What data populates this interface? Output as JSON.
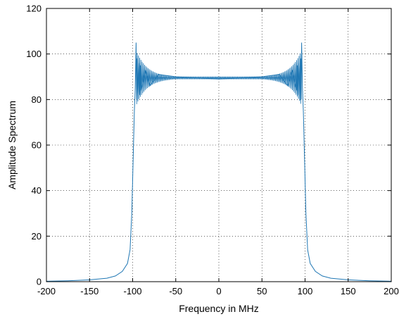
{
  "chart_data": {
    "type": "line",
    "title": "",
    "xlabel": "Frequency in MHz",
    "ylabel": "Amplitude Spectrum",
    "xlim": [
      -200,
      200
    ],
    "ylim": [
      0,
      120
    ],
    "xticks": [
      -200,
      -150,
      -100,
      -50,
      0,
      50,
      100,
      150,
      200
    ],
    "yticks": [
      0,
      20,
      40,
      60,
      80,
      100,
      120
    ],
    "xtick_labels": [
      "-200",
      "-150",
      "-100",
      "-50",
      "0",
      "50",
      "100",
      "150",
      "200"
    ],
    "ytick_labels": [
      "0",
      "20",
      "40",
      "60",
      "80",
      "100",
      "120"
    ],
    "grid": true,
    "grid_style": "dotted",
    "legend": "none",
    "series": [
      {
        "color": "#1f77b4",
        "description": "Chirp (LFM) amplitude spectrum: near-zero outside ±100 MHz, sharp edges with Fresnel ripple peaking ~105 at ±96 MHz, dipping ~78, flat ~89–90 in the passband",
        "peak_value": 105,
        "ripple_min": 78,
        "passband_level": 89.5,
        "band_edge": 100,
        "x": [
          -200,
          -175,
          -150,
          -130,
          -120,
          -112,
          -106,
          -103,
          -101,
          -100,
          -99,
          -98,
          -97,
          -96.5,
          -96,
          -95.5,
          -95,
          -94,
          -93,
          -92,
          -91,
          -90,
          -85,
          -80,
          -70,
          -60,
          -50,
          -40,
          -30,
          -20,
          -10,
          0,
          10,
          20,
          30,
          40,
          50,
          60,
          70,
          80,
          85,
          90,
          91,
          92,
          93,
          94,
          95,
          95.5,
          96,
          96.5,
          97,
          98,
          99,
          100,
          101,
          103,
          106,
          112,
          120,
          130,
          150,
          175,
          200
        ],
        "y": [
          0.2,
          0.4,
          0.8,
          1.5,
          2.5,
          4.5,
          8,
          14,
          30,
          45,
          60,
          75,
          85,
          95,
          105,
          80,
          98,
          80,
          96,
          82,
          95,
          84,
          93,
          86,
          91,
          90.5,
          90,
          89.8,
          89.6,
          89.4,
          89.2,
          89,
          89.2,
          89.4,
          89.6,
          89.8,
          90,
          90.5,
          91,
          86,
          93,
          84,
          95,
          82,
          96,
          80,
          98,
          80,
          105,
          95,
          85,
          75,
          60,
          45,
          30,
          14,
          8,
          4.5,
          2.5,
          1.5,
          0.8,
          0.4,
          0.2
        ]
      }
    ]
  }
}
